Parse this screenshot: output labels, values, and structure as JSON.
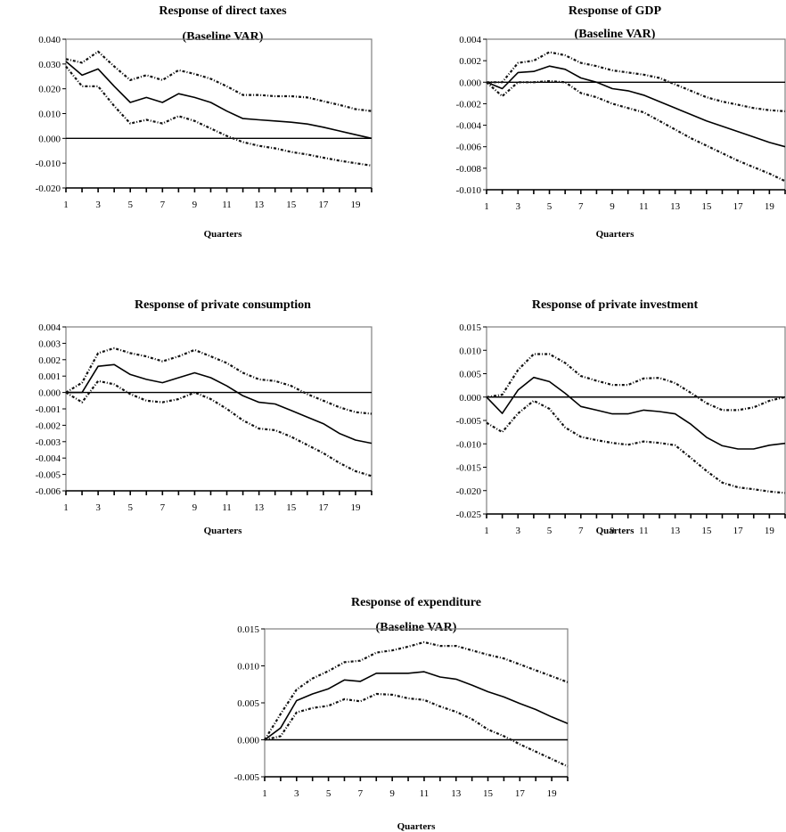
{
  "chart_data": [
    {
      "type": "line",
      "title": "Response of direct taxes",
      "subtitle": "(Baseline VAR)",
      "xlabel": "Quarters",
      "ylabel": "",
      "x": [
        1,
        2,
        3,
        4,
        5,
        6,
        7,
        8,
        9,
        10,
        11,
        12,
        13,
        14,
        15,
        16,
        17,
        18,
        19,
        20
      ],
      "x_ticks": [
        1,
        3,
        5,
        7,
        9,
        11,
        13,
        15,
        17,
        19
      ],
      "xlim": [
        1,
        20
      ],
      "ylim": [
        -0.02,
        0.04
      ],
      "y_ticks": [
        -0.02,
        -0.01,
        0.0,
        0.01,
        0.02,
        0.03,
        0.04
      ],
      "y_tick_labels": [
        "-0.020",
        "-0.010",
        "0.000",
        "0.010",
        "0.020",
        "0.030",
        "0.040"
      ],
      "series": [
        {
          "role": "response",
          "values": [
            0.031,
            0.0255,
            0.028,
            0.021,
            0.0145,
            0.0165,
            0.0145,
            0.018,
            0.0165,
            0.0145,
            0.011,
            0.008,
            0.0075,
            0.007,
            0.0065,
            0.0058,
            0.0045,
            0.003,
            0.0015,
            0.0
          ]
        },
        {
          "role": "upper",
          "values": [
            0.032,
            0.0305,
            0.035,
            0.029,
            0.0235,
            0.0255,
            0.0235,
            0.0275,
            0.026,
            0.024,
            0.021,
            0.0175,
            0.0175,
            0.017,
            0.017,
            0.0165,
            0.015,
            0.0135,
            0.0118,
            0.011
          ]
        },
        {
          "role": "lower",
          "values": [
            0.029,
            0.021,
            0.021,
            0.013,
            0.006,
            0.0075,
            0.006,
            0.009,
            0.007,
            0.004,
            0.001,
            -0.0015,
            -0.003,
            -0.004,
            -0.0055,
            -0.0065,
            -0.0078,
            -0.009,
            -0.01,
            -0.011
          ]
        }
      ]
    },
    {
      "type": "line",
      "title": "Response of GDP",
      "subtitle": "(Baseline VAR)",
      "xlabel": "Quarters",
      "ylabel": "",
      "x": [
        1,
        2,
        3,
        4,
        5,
        6,
        7,
        8,
        9,
        10,
        11,
        12,
        13,
        14,
        15,
        16,
        17,
        18,
        19,
        20
      ],
      "x_ticks": [
        1,
        3,
        5,
        7,
        9,
        11,
        13,
        15,
        17,
        19
      ],
      "xlim": [
        1,
        20
      ],
      "ylim": [
        -0.01,
        0.004
      ],
      "y_ticks": [
        -0.01,
        -0.008,
        -0.006,
        -0.004,
        -0.002,
        0.0,
        0.002,
        0.004
      ],
      "y_tick_labels": [
        "-0.010",
        "-0.008",
        "-0.006",
        "-0.004",
        "-0.002",
        "0.000",
        "0.002",
        "0.004"
      ],
      "series": [
        {
          "role": "response",
          "values": [
            0.0,
            -0.0006,
            0.0009,
            0.001,
            0.0015,
            0.0012,
            0.0004,
            0.0,
            -0.0006,
            -0.0008,
            -0.0012,
            -0.0018,
            -0.0024,
            -0.003,
            -0.0036,
            -0.0041,
            -0.0046,
            -0.0051,
            -0.0056,
            -0.006
          ]
        },
        {
          "role": "upper",
          "values": [
            0.0,
            0.0,
            0.0018,
            0.002,
            0.0028,
            0.0025,
            0.0018,
            0.0015,
            0.0011,
            0.0009,
            0.0007,
            0.0004,
            -0.0002,
            -0.0008,
            -0.0014,
            -0.0018,
            -0.0021,
            -0.0024,
            -0.0026,
            -0.0027
          ]
        },
        {
          "role": "lower",
          "values": [
            0.0,
            -0.0013,
            0.0,
            0.0,
            0.0001,
            0.0,
            -0.001,
            -0.0014,
            -0.002,
            -0.0024,
            -0.0028,
            -0.0036,
            -0.0044,
            -0.0052,
            -0.0059,
            -0.0066,
            -0.0073,
            -0.0079,
            -0.0085,
            -0.0092
          ]
        }
      ]
    },
    {
      "type": "line",
      "title": "Response of private consumption",
      "subtitle": "",
      "xlabel": "Quarters",
      "ylabel": "",
      "x": [
        1,
        2,
        3,
        4,
        5,
        6,
        7,
        8,
        9,
        10,
        11,
        12,
        13,
        14,
        15,
        16,
        17,
        18,
        19,
        20
      ],
      "x_ticks": [
        1,
        3,
        5,
        7,
        9,
        11,
        13,
        15,
        17,
        19
      ],
      "xlim": [
        1,
        20
      ],
      "ylim": [
        -0.006,
        0.004
      ],
      "y_ticks": [
        -0.006,
        -0.005,
        -0.004,
        -0.003,
        -0.002,
        -0.001,
        0.0,
        0.001,
        0.002,
        0.003,
        0.004
      ],
      "y_tick_labels": [
        "-0.006",
        "-0.005",
        "-0.004",
        "-0.003",
        "-0.002",
        "-0.001",
        "0.000",
        "0.001",
        "0.002",
        "0.003",
        "0.004"
      ],
      "series": [
        {
          "role": "response",
          "values": [
            0.0,
            0.0,
            0.0016,
            0.0017,
            0.0011,
            0.0008,
            0.0006,
            0.0009,
            0.0012,
            0.0009,
            0.0004,
            -0.0002,
            -0.0006,
            -0.0007,
            -0.0011,
            -0.0015,
            -0.0019,
            -0.0025,
            -0.0029,
            -0.0031
          ]
        },
        {
          "role": "upper",
          "values": [
            0.0,
            0.0006,
            0.0024,
            0.0027,
            0.0024,
            0.0022,
            0.0019,
            0.0022,
            0.0026,
            0.0022,
            0.0018,
            0.0012,
            0.0008,
            0.0007,
            0.0004,
            -0.0001,
            -0.0005,
            -0.0009,
            -0.0012,
            -0.0013
          ]
        },
        {
          "role": "lower",
          "values": [
            0.0,
            -0.0006,
            0.0007,
            0.0005,
            -0.0001,
            -0.0005,
            -0.0006,
            -0.0004,
            0.0,
            -0.0004,
            -0.001,
            -0.0017,
            -0.0022,
            -0.0023,
            -0.0027,
            -0.0032,
            -0.0037,
            -0.0043,
            -0.0048,
            -0.0051
          ]
        }
      ]
    },
    {
      "type": "line",
      "title": "Response of private investment",
      "subtitle": "",
      "xlabel": "Quarters",
      "ylabel": "",
      "x": [
        1,
        2,
        3,
        4,
        5,
        6,
        7,
        8,
        9,
        10,
        11,
        12,
        13,
        14,
        15,
        16,
        17,
        18,
        19,
        20
      ],
      "x_ticks": [
        1,
        3,
        5,
        7,
        9,
        11,
        13,
        15,
        17,
        19
      ],
      "xlim": [
        1,
        20
      ],
      "ylim": [
        -0.025,
        0.015
      ],
      "y_ticks": [
        -0.025,
        -0.02,
        -0.015,
        -0.01,
        -0.005,
        0.0,
        0.005,
        0.01,
        0.015
      ],
      "y_tick_labels": [
        "-0.025",
        "-0.020",
        "-0.015",
        "-0.010",
        "-0.005",
        "0.000",
        "0.005",
        "0.010",
        "0.015"
      ],
      "series": [
        {
          "role": "response",
          "values": [
            0.0,
            -0.0035,
            0.0015,
            0.0042,
            0.0033,
            0.0008,
            -0.002,
            -0.0028,
            -0.0036,
            -0.0036,
            -0.0028,
            -0.0031,
            -0.0036,
            -0.0058,
            -0.0086,
            -0.0104,
            -0.0111,
            -0.0111,
            -0.0103,
            -0.0099
          ]
        },
        {
          "role": "upper",
          "values": [
            0.0,
            0.0005,
            0.0058,
            0.0092,
            0.0092,
            0.0073,
            0.0045,
            0.0035,
            0.0026,
            0.0026,
            0.004,
            0.0041,
            0.003,
            0.0009,
            -0.0013,
            -0.0028,
            -0.0028,
            -0.0022,
            -0.0008,
            0.0
          ]
        },
        {
          "role": "lower",
          "values": [
            -0.0055,
            -0.0075,
            -0.0035,
            -0.0008,
            -0.0025,
            -0.0065,
            -0.0085,
            -0.0092,
            -0.0098,
            -0.0102,
            -0.0095,
            -0.0098,
            -0.0103,
            -0.013,
            -0.0158,
            -0.0183,
            -0.0193,
            -0.0197,
            -0.0202,
            -0.0205
          ]
        }
      ]
    },
    {
      "type": "line",
      "title": "Response of expenditure",
      "subtitle": "(Baseline VAR)",
      "xlabel": "Quarters",
      "ylabel": "",
      "x": [
        1,
        2,
        3,
        4,
        5,
        6,
        7,
        8,
        9,
        10,
        11,
        12,
        13,
        14,
        15,
        16,
        17,
        18,
        19,
        20
      ],
      "x_ticks": [
        1,
        3,
        5,
        7,
        9,
        11,
        13,
        15,
        17,
        19
      ],
      "xlim": [
        1,
        20
      ],
      "ylim": [
        -0.005,
        0.015
      ],
      "y_ticks": [
        -0.005,
        0.0,
        0.005,
        0.01,
        0.015
      ],
      "y_tick_labels": [
        "-0.005",
        "0.000",
        "0.005",
        "0.010",
        "0.015"
      ],
      "series": [
        {
          "role": "response",
          "values": [
            0.0,
            0.0016,
            0.0053,
            0.0062,
            0.0069,
            0.0081,
            0.0079,
            0.009,
            0.009,
            0.009,
            0.0092,
            0.0085,
            0.0082,
            0.0074,
            0.0065,
            0.0058,
            0.0049,
            0.0041,
            0.0031,
            0.0022
          ]
        },
        {
          "role": "upper",
          "values": [
            0.0,
            0.0035,
            0.0068,
            0.0083,
            0.0093,
            0.0105,
            0.0107,
            0.0118,
            0.0121,
            0.0126,
            0.0132,
            0.0127,
            0.0127,
            0.0121,
            0.0115,
            0.011,
            0.0102,
            0.0094,
            0.0086,
            0.0078
          ]
        },
        {
          "role": "lower",
          "values": [
            0.0,
            0.0005,
            0.0037,
            0.0043,
            0.0046,
            0.0055,
            0.0052,
            0.0062,
            0.0061,
            0.0056,
            0.0054,
            0.0045,
            0.0038,
            0.0028,
            0.0014,
            0.0005,
            -0.0006,
            -0.0016,
            -0.0026,
            -0.0036
          ]
        }
      ]
    }
  ]
}
